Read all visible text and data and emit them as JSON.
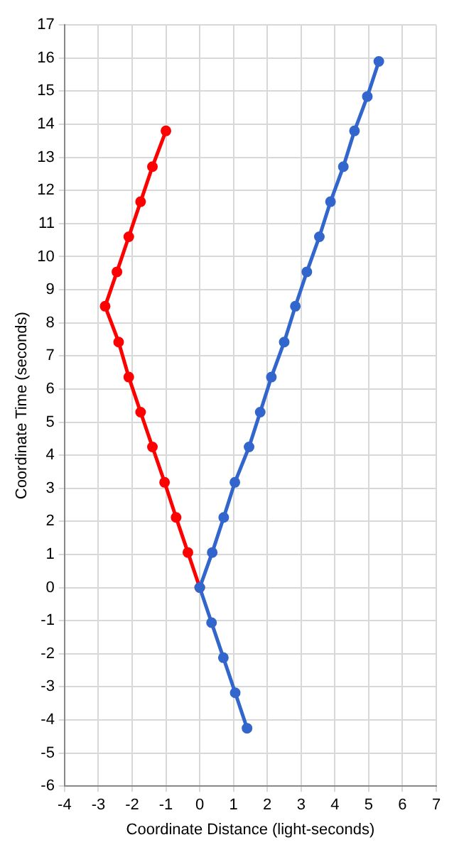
{
  "chart_data": {
    "type": "line",
    "xlabel": "Coordinate Distance (light-seconds)",
    "ylabel": "Coordinate Time (seconds)",
    "xlim": [
      -4,
      7
    ],
    "ylim": [
      -6,
      17
    ],
    "xticks": [
      -4,
      -3,
      -2,
      -1,
      0,
      1,
      2,
      3,
      4,
      5,
      6,
      7
    ],
    "yticks": [
      -6,
      -5,
      -4,
      -3,
      -2,
      -1,
      0,
      1,
      2,
      3,
      4,
      5,
      6,
      7,
      8,
      9,
      10,
      11,
      12,
      13,
      14,
      15,
      16,
      17
    ],
    "grid": true,
    "legend": false,
    "marker": "circle",
    "line_style": "solid",
    "series": [
      {
        "color": "#3366cc",
        "x": [
          1.4,
          1.05,
          0.7,
          0.35,
          0,
          0.37,
          0.71,
          1.04,
          1.46,
          1.79,
          2.12,
          2.5,
          2.83,
          3.17,
          3.54,
          3.87,
          4.25,
          4.58,
          4.96,
          5.3
        ],
        "values": [
          -4.25,
          -3.18,
          -2.12,
          -1.06,
          0,
          1.06,
          2.12,
          3.18,
          4.25,
          5.3,
          6.36,
          7.42,
          8.5,
          9.54,
          10.6,
          11.66,
          12.72,
          13.8,
          14.84,
          15.9
        ]
      },
      {
        "color": "#ff0000",
        "x": [
          0,
          -0.35,
          -0.7,
          -1.04,
          -1.4,
          -1.75,
          -2.1,
          -2.4,
          -2.8,
          -2.45,
          -2.1,
          -1.75,
          -1.4,
          -1.0
        ],
        "values": [
          0,
          1.06,
          2.12,
          3.18,
          4.25,
          5.3,
          6.36,
          7.42,
          8.5,
          9.54,
          10.6,
          11.66,
          12.72,
          13.8
        ]
      }
    ]
  }
}
